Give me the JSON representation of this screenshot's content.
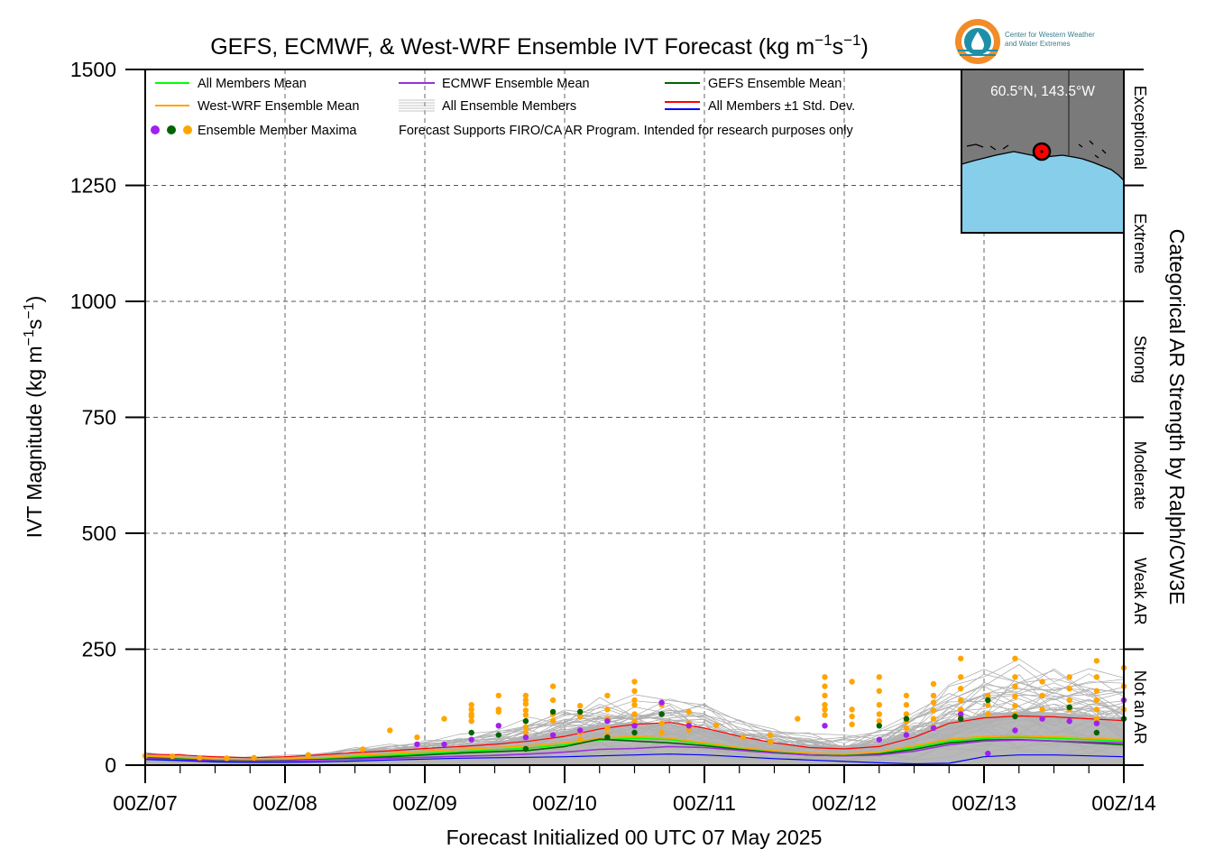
{
  "chart_data": {
    "type": "line",
    "title": "GEFS, ECMWF, & West-WRF Ensemble IVT Forecast (kg m⁻¹s⁻¹)",
    "title_parts": {
      "main": "GEFS, ECMWF, & West-WRF Ensemble IVT Forecast (kg m",
      "sup1": "−1",
      "mid": "s",
      "sup2": "−1",
      "end": ")"
    },
    "ylabel": "IVT Magnitude (kg m⁻¹s⁻¹)",
    "ylabel_parts": {
      "main": "IVT Magnitude (kg m",
      "sup1": "−1",
      "mid": "s",
      "sup2": "−1",
      "end": ")"
    },
    "xlabel": "Forecast Initialized 00 UTC 07 May 2025",
    "right_label": "Categorical AR Strength by Ralph/CW3E",
    "ylim": [
      0,
      1500
    ],
    "xlim": [
      0,
      168
    ],
    "yticks": [
      0,
      250,
      500,
      750,
      1000,
      1250,
      1500
    ],
    "ytick_labels": [
      "0",
      "250",
      "500",
      "750",
      "1000",
      "1250",
      "1500"
    ],
    "xticks": [
      0,
      24,
      48,
      72,
      96,
      120,
      144,
      168
    ],
    "xtick_labels": [
      "00Z/07",
      "00Z/08",
      "00Z/09",
      "00Z/10",
      "00Z/11",
      "00Z/12",
      "00Z/13",
      "00Z/14"
    ],
    "grid": true,
    "categories_ar": [
      {
        "label": "Not an AR",
        "from": 0,
        "to": 250
      },
      {
        "label": "Weak AR",
        "from": 250,
        "to": 500
      },
      {
        "label": "Moderate",
        "from": 500,
        "to": 750
      },
      {
        "label": "Strong",
        "from": 750,
        "to": 1000
      },
      {
        "label": "Extreme",
        "from": 1000,
        "to": 1250
      },
      {
        "label": "Exceptional",
        "from": 1250,
        "to": 1500
      }
    ],
    "legend": {
      "position": "top-left",
      "entries": [
        {
          "label": "All Members Mean",
          "color": "#00ff00",
          "kind": "line"
        },
        {
          "label": "ECMWF Ensemble Mean",
          "color": "#9b30d9",
          "kind": "line"
        },
        {
          "label": "GEFS Ensemble Mean",
          "color": "#006400",
          "kind": "line"
        },
        {
          "label": "West-WRF Ensemble Mean",
          "color": "#ffa500",
          "kind": "line"
        },
        {
          "label": "All Ensemble Members",
          "color": "#b0b0b0",
          "kind": "multiline"
        },
        {
          "label": "All Members ±1 Std. Dev.",
          "color": "#ff0000",
          "color2": "#0000ff",
          "kind": "dualline"
        },
        {
          "label": "Ensemble Member Maxima",
          "colors": [
            "#a020f0",
            "#006400",
            "#ffa500"
          ],
          "kind": "dots"
        }
      ],
      "note": "Forecast Supports FIRO/CA AR Program. Intended for research purposes only"
    },
    "inset": {
      "label": "60.5°N, 143.5°W"
    },
    "logo": {
      "line1": "Center for Western Weather",
      "line2": "and Water Extremes"
    },
    "x": [
      0,
      6,
      12,
      18,
      24,
      30,
      36,
      42,
      48,
      54,
      60,
      66,
      72,
      78,
      84,
      90,
      96,
      102,
      108,
      114,
      120,
      126,
      132,
      138,
      144,
      150,
      156,
      162,
      168
    ],
    "series": [
      {
        "key": "std_upper",
        "color": "#ff0000",
        "width": 1.2,
        "values": [
          24,
          22,
          18,
          16,
          18,
          22,
          27,
          31,
          36,
          40,
          45,
          52,
          62,
          78,
          88,
          92,
          80,
          62,
          48,
          38,
          35,
          40,
          60,
          90,
          102,
          106,
          104,
          100,
          96
        ]
      },
      {
        "key": "all_mean",
        "color": "#00ff00",
        "width": 1.6,
        "values": [
          18,
          15,
          12,
          11,
          12,
          14,
          18,
          21,
          25,
          29,
          33,
          37,
          44,
          54,
          58,
          55,
          46,
          36,
          29,
          24,
          22,
          26,
          38,
          52,
          58,
          60,
          58,
          55,
          52
        ]
      },
      {
        "key": "westwrf_mean",
        "color": "#ffa500",
        "width": 1.6,
        "values": [
          20,
          17,
          13,
          12,
          13,
          16,
          21,
          25,
          30,
          34,
          38,
          42,
          48,
          58,
          62,
          58,
          48,
          38,
          31,
          26,
          24,
          28,
          42,
          56,
          62,
          63,
          61,
          58,
          55
        ]
      },
      {
        "key": "gefs_mean",
        "color": "#006400",
        "width": 1.6,
        "values": [
          16,
          13,
          10,
          9,
          10,
          12,
          15,
          18,
          22,
          26,
          29,
          32,
          40,
          56,
          52,
          48,
          42,
          34,
          27,
          22,
          20,
          24,
          34,
          48,
          54,
          55,
          52,
          48,
          44
        ]
      },
      {
        "key": "ecmwf_mean",
        "color": "#9b30d9",
        "width": 1.6,
        "values": [
          14,
          12,
          9,
          8,
          9,
          11,
          13,
          15,
          17,
          19,
          21,
          24,
          28,
          34,
          36,
          40,
          38,
          32,
          26,
          22,
          20,
          22,
          30,
          44,
          52,
          54,
          52,
          50,
          48
        ]
      },
      {
        "key": "std_lower",
        "color": "#0000ff",
        "width": 1.2,
        "values": [
          12,
          10,
          7,
          6,
          6,
          7,
          9,
          11,
          13,
          15,
          16,
          17,
          18,
          20,
          22,
          24,
          22,
          18,
          14,
          11,
          8,
          5,
          3,
          4,
          18,
          22,
          22,
          20,
          18
        ]
      }
    ],
    "members": {
      "count": 45,
      "color": "#b0b0b0",
      "spread_above_mean": [
        14,
        12,
        10,
        10,
        12,
        16,
        22,
        28,
        34,
        40,
        50,
        70,
        85,
        95,
        100,
        100,
        90,
        70,
        55,
        45,
        40,
        50,
        80,
        120,
        150,
        160,
        160,
        150,
        140
      ]
    },
    "maxima": {
      "orange": [
        [
          0,
          20
        ],
        [
          6,
          19
        ],
        [
          12,
          16
        ],
        [
          18,
          15
        ],
        [
          24,
          16
        ],
        [
          36,
          22
        ],
        [
          48,
          34
        ],
        [
          54,
          75
        ],
        [
          60,
          60
        ],
        [
          66,
          100
        ],
        [
          72,
          95
        ],
        [
          72,
          130
        ],
        [
          72,
          120
        ],
        [
          72,
          110
        ],
        [
          72,
          105
        ],
        [
          78,
          115
        ],
        [
          78,
          150
        ],
        [
          78,
          120
        ],
        [
          78,
          85
        ],
        [
          84,
          140
        ],
        [
          84,
          150
        ],
        [
          84,
          118
        ],
        [
          84,
          132
        ],
        [
          84,
          108
        ],
        [
          84,
          95
        ],
        [
          84,
          82
        ],
        [
          84,
          70
        ],
        [
          90,
          170
        ],
        [
          90,
          140
        ],
        [
          90,
          110
        ],
        [
          90,
          96
        ],
        [
          96,
          128
        ],
        [
          96,
          105
        ],
        [
          96,
          70
        ],
        [
          96,
          55
        ],
        [
          102,
          120
        ],
        [
          102,
          100
        ],
        [
          102,
          150
        ],
        [
          102,
          80
        ],
        [
          102,
          65
        ],
        [
          108,
          140
        ],
        [
          108,
          180
        ],
        [
          108,
          160
        ],
        [
          108,
          130
        ],
        [
          108,
          110
        ],
        [
          108,
          95
        ],
        [
          114,
          130
        ],
        [
          114,
          90
        ],
        [
          114,
          70
        ],
        [
          120,
          115
        ],
        [
          120,
          90
        ],
        [
          120,
          76
        ],
        [
          126,
          86
        ],
        [
          132,
          60
        ],
        [
          138,
          65
        ],
        [
          138,
          50
        ],
        [
          144,
          100
        ],
        [
          150,
          190
        ],
        [
          150,
          170
        ],
        [
          150,
          150
        ],
        [
          150,
          130
        ],
        [
          150,
          120
        ],
        [
          150,
          108
        ],
        [
          156,
          180
        ],
        [
          156,
          120
        ],
        [
          156,
          105
        ],
        [
          156,
          88
        ],
        [
          162,
          190
        ],
        [
          162,
          160
        ],
        [
          162,
          130
        ],
        [
          162,
          110
        ],
        [
          162,
          95
        ],
        [
          168,
          150
        ],
        [
          168,
          130
        ],
        [
          168,
          110
        ],
        [
          168,
          95
        ],
        [
          168,
          80
        ],
        [
          174,
          175
        ],
        [
          174,
          150
        ],
        [
          174,
          135
        ],
        [
          174,
          118
        ],
        [
          174,
          100
        ],
        [
          174,
          82
        ],
        [
          180,
          230
        ],
        [
          180,
          190
        ],
        [
          180,
          165
        ],
        [
          180,
          140
        ],
        [
          180,
          120
        ],
        [
          180,
          105
        ],
        [
          186,
          150
        ],
        [
          186,
          130
        ],
        [
          186,
          110
        ],
        [
          192,
          230
        ],
        [
          192,
          190
        ],
        [
          192,
          170
        ],
        [
          192,
          148
        ],
        [
          192,
          128
        ],
        [
          192,
          110
        ],
        [
          198,
          180
        ],
        [
          198,
          150
        ],
        [
          198,
          120
        ],
        [
          198,
          100
        ],
        [
          204,
          190
        ],
        [
          204,
          165
        ],
        [
          204,
          140
        ],
        [
          204,
          120
        ],
        [
          210,
          225
        ],
        [
          210,
          190
        ],
        [
          210,
          160
        ],
        [
          210,
          140
        ],
        [
          210,
          120
        ],
        [
          210,
          100
        ],
        [
          216,
          210
        ],
        [
          216,
          170
        ],
        [
          216,
          140
        ],
        [
          216,
          120
        ]
      ],
      "purple": [
        [
          60,
          45
        ],
        [
          66,
          45
        ],
        [
          72,
          55
        ],
        [
          78,
          85
        ],
        [
          84,
          60
        ],
        [
          90,
          65
        ],
        [
          96,
          75
        ],
        [
          102,
          95
        ],
        [
          108,
          85
        ],
        [
          114,
          135
        ],
        [
          114,
          110
        ],
        [
          120,
          85
        ],
        [
          150,
          85
        ],
        [
          162,
          55
        ],
        [
          168,
          65
        ],
        [
          174,
          80
        ],
        [
          180,
          110
        ],
        [
          186,
          25
        ],
        [
          192,
          75
        ],
        [
          198,
          100
        ],
        [
          204,
          95
        ],
        [
          210,
          90
        ],
        [
          216,
          140
        ]
      ],
      "green": [
        [
          72,
          70
        ],
        [
          78,
          65
        ],
        [
          84,
          95
        ],
        [
          84,
          35
        ],
        [
          90,
          115
        ],
        [
          96,
          115
        ],
        [
          102,
          60
        ],
        [
          108,
          70
        ],
        [
          114,
          110
        ],
        [
          162,
          85
        ],
        [
          168,
          100
        ],
        [
          180,
          100
        ],
        [
          186,
          140
        ],
        [
          192,
          105
        ],
        [
          204,
          125
        ],
        [
          210,
          70
        ],
        [
          216,
          100
        ]
      ]
    }
  }
}
